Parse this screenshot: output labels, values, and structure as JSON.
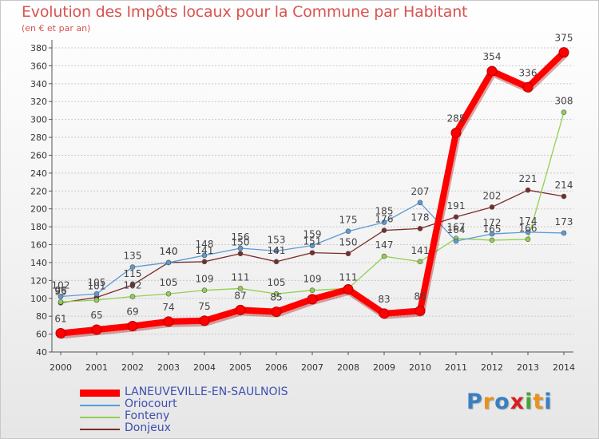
{
  "chart_data": {
    "type": "line",
    "title": "Evolution des Impôts locaux pour la Commune par Habitant",
    "subtitle": "(en € et par an)",
    "x": [
      "2000",
      "2001",
      "2002",
      "2003",
      "2004",
      "2005",
      "2006",
      "2007",
      "2008",
      "2009",
      "2010",
      "2011",
      "2012",
      "2013",
      "2014"
    ],
    "ylim": [
      40,
      380
    ],
    "yticks": [
      40,
      60,
      80,
      100,
      120,
      140,
      160,
      180,
      200,
      220,
      240,
      260,
      280,
      300,
      320,
      340,
      360,
      380
    ],
    "grid": true,
    "series": [
      {
        "name": "LANEUVEVILLE-EN-SAULNOIS",
        "color": "#ff0000",
        "values": [
          61,
          65,
          69,
          74,
          75,
          87,
          85,
          99,
          110,
          83,
          86,
          285,
          354,
          336,
          375
        ],
        "labels": [
          "61",
          "65",
          "69",
          "74",
          "75",
          "87",
          "85",
          "",
          "",
          "83",
          "86",
          "285",
          "354",
          "336",
          "375"
        ]
      },
      {
        "name": "Oriocourt",
        "color": "#5b9bd5",
        "values": [
          102,
          105,
          135,
          140,
          148,
          156,
          153,
          159,
          175,
          185,
          207,
          164,
          172,
          174,
          173
        ],
        "labels": [
          "102",
          "105",
          "135",
          "140",
          "148",
          "156",
          "153",
          "159",
          "175",
          "185",
          "207",
          "164",
          "172",
          "174",
          "173"
        ]
      },
      {
        "name": "Fonteny",
        "color": "#92d050",
        "values": [
          96,
          98,
          102,
          105,
          109,
          111,
          105,
          109,
          111,
          147,
          141,
          167,
          165,
          166,
          308
        ],
        "labels": [
          "96",
          "",
          "102",
          "105",
          "109",
          "111",
          "105",
          "109",
          "111",
          "147",
          "141",
          "167",
          "165",
          "166",
          "308"
        ]
      },
      {
        "name": "Donjeux",
        "color": "#7b2b2b",
        "values": [
          95,
          101,
          115,
          140,
          141,
          150,
          141,
          151,
          150,
          176,
          178,
          191,
          202,
          221,
          214
        ],
        "labels": [
          "95",
          "101",
          "115",
          "140",
          "141",
          "150",
          "141",
          "151",
          "150",
          "176",
          "178",
          "191",
          "202",
          "221",
          "214"
        ]
      }
    ]
  },
  "logo": {
    "letters": [
      "P",
      "r",
      "o",
      "x",
      "i",
      "t",
      "i"
    ],
    "colors": [
      "#3a7fc1",
      "#e8921e",
      "#3a7fc1",
      "#d62020",
      "#49a33a",
      "#e8921e",
      "#3a7fc1"
    ]
  }
}
